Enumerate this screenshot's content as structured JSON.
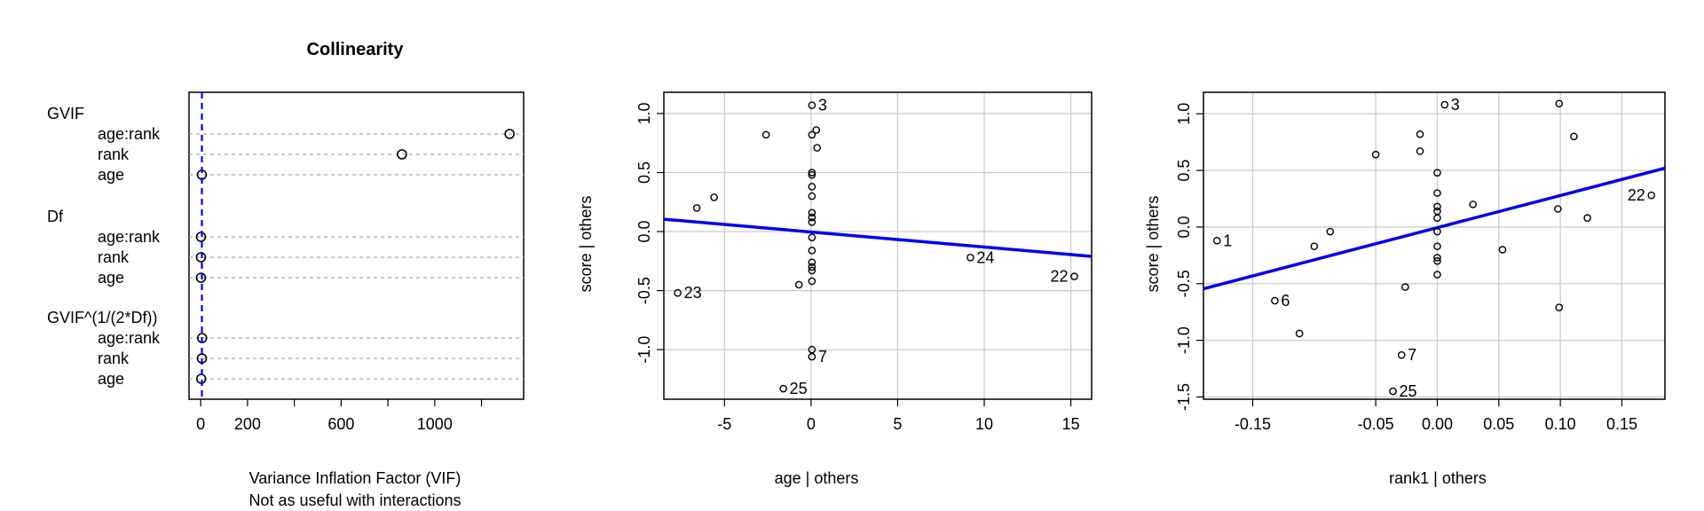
{
  "chart_data": [
    {
      "type": "dot",
      "title": "Collinearity",
      "xlabel": "Variance Inflation Factor (VIF)",
      "subtitle": "Not as useful with interactions",
      "x_ticks": [
        0,
        200,
        600,
        1000
      ],
      "xlim": [
        -50,
        1380
      ],
      "reference_line": 5,
      "groups": [
        {
          "label": "GVIF",
          "items": [
            {
              "label": "age:rank",
              "value": 1320
            },
            {
              "label": "rank",
              "value": 860
            },
            {
              "label": "age",
              "value": 5
            }
          ]
        },
        {
          "label": "Df",
          "items": [
            {
              "label": "age:rank",
              "value": 1
            },
            {
              "label": "rank",
              "value": 1
            },
            {
              "label": "age",
              "value": 1
            }
          ]
        },
        {
          "label": "GVIF^(1/(2*Df))",
          "items": [
            {
              "label": "age:rank",
              "value": 6
            },
            {
              "label": "rank",
              "value": 5
            },
            {
              "label": "age",
              "value": 2
            }
          ]
        }
      ]
    },
    {
      "type": "scatter",
      "xlabel": "age | others",
      "ylabel": "score  | others",
      "xlim": [
        -8.5,
        16.2
      ],
      "ylim": [
        -1.42,
        1.18
      ],
      "x_ticks": [
        -5,
        0,
        5,
        10,
        15
      ],
      "y_ticks": [
        -1.0,
        -0.5,
        0.0,
        0.5,
        1.0
      ],
      "fit_line": {
        "x": [
          -8.5,
          16.2
        ],
        "y": [
          0.105,
          -0.21
        ]
      },
      "points": [
        {
          "x": 0.05,
          "y": 1.07,
          "label": "3"
        },
        {
          "x": 0.3,
          "y": 0.86
        },
        {
          "x": 0.05,
          "y": 0.82
        },
        {
          "x": -2.6,
          "y": 0.82
        },
        {
          "x": 0.35,
          "y": 0.71
        },
        {
          "x": 0.05,
          "y": 0.5
        },
        {
          "x": 0.05,
          "y": 0.48
        },
        {
          "x": 0.05,
          "y": 0.38
        },
        {
          "x": 0.05,
          "y": 0.3
        },
        {
          "x": -5.6,
          "y": 0.29
        },
        {
          "x": -6.6,
          "y": 0.2
        },
        {
          "x": 0.05,
          "y": 0.16
        },
        {
          "x": 0.05,
          "y": 0.12
        },
        {
          "x": 0.05,
          "y": 0.08
        },
        {
          "x": 0.05,
          "y": -0.05
        },
        {
          "x": 0.05,
          "y": -0.16
        },
        {
          "x": 0.05,
          "y": -0.26
        },
        {
          "x": 0.05,
          "y": -0.3
        },
        {
          "x": 0.05,
          "y": -0.33
        },
        {
          "x": 0.05,
          "y": -0.42
        },
        {
          "x": -0.7,
          "y": -0.45
        },
        {
          "x": -7.7,
          "y": -0.52,
          "label": "23"
        },
        {
          "x": 9.2,
          "y": -0.22,
          "label": "24"
        },
        {
          "x": 15.2,
          "y": -0.38,
          "label": "22"
        },
        {
          "x": 0.05,
          "y": -1.0
        },
        {
          "x": 0.05,
          "y": -1.06,
          "label": "7"
        },
        {
          "x": -1.6,
          "y": -1.33,
          "label": "25"
        }
      ]
    },
    {
      "type": "scatter",
      "xlabel": "rank1 | others",
      "ylabel": "score  | others",
      "xlim": [
        -0.19,
        0.185
      ],
      "ylim": [
        -1.52,
        1.19
      ],
      "x_ticks": [
        -0.15,
        -0.05,
        0.0,
        0.05,
        0.1,
        0.15
      ],
      "x_tick_labels": [
        "-0.15",
        "-0.05",
        "0.00",
        "0.05",
        "0.10",
        "0.15"
      ],
      "y_ticks": [
        -1.5,
        -1.0,
        -0.5,
        0.0,
        0.5,
        1.0
      ],
      "fit_line": {
        "x": [
          -0.19,
          0.185
        ],
        "y": [
          -0.545,
          0.52
        ]
      },
      "points": [
        {
          "x": 0.006,
          "y": 1.08,
          "label": "3"
        },
        {
          "x": 0.099,
          "y": 1.09
        },
        {
          "x": -0.014,
          "y": 0.82
        },
        {
          "x": 0.111,
          "y": 0.8
        },
        {
          "x": -0.014,
          "y": 0.67
        },
        {
          "x": -0.05,
          "y": 0.64
        },
        {
          "x": 0.0,
          "y": 0.48
        },
        {
          "x": 0.0,
          "y": 0.3
        },
        {
          "x": 0.0,
          "y": 0.18
        },
        {
          "x": 0.0,
          "y": 0.14
        },
        {
          "x": 0.029,
          "y": 0.2
        },
        {
          "x": 0.098,
          "y": 0.16
        },
        {
          "x": 0.0,
          "y": 0.08
        },
        {
          "x": 0.122,
          "y": 0.08
        },
        {
          "x": 0.174,
          "y": 0.28,
          "label": "22"
        },
        {
          "x": 0.0,
          "y": -0.04
        },
        {
          "x": -0.087,
          "y": -0.04
        },
        {
          "x": -0.1,
          "y": -0.17
        },
        {
          "x": 0.0,
          "y": -0.17
        },
        {
          "x": 0.053,
          "y": -0.2
        },
        {
          "x": 0.0,
          "y": -0.27
        },
        {
          "x": 0.0,
          "y": -0.3
        },
        {
          "x": 0.0,
          "y": -0.42
        },
        {
          "x": -0.179,
          "y": -0.12,
          "label": "1"
        },
        {
          "x": -0.026,
          "y": -0.53
        },
        {
          "x": -0.132,
          "y": -0.65,
          "label": "6"
        },
        {
          "x": 0.099,
          "y": -0.71
        },
        {
          "x": -0.112,
          "y": -0.94
        },
        {
          "x": -0.029,
          "y": -1.13,
          "label": "7"
        },
        {
          "x": -0.036,
          "y": -1.45,
          "label": "25"
        }
      ]
    }
  ],
  "colors": {
    "fit": "#0000EE",
    "grid": "#CCCCCC",
    "dotted": "#AAAAAA",
    "ref": "#0000EE"
  }
}
